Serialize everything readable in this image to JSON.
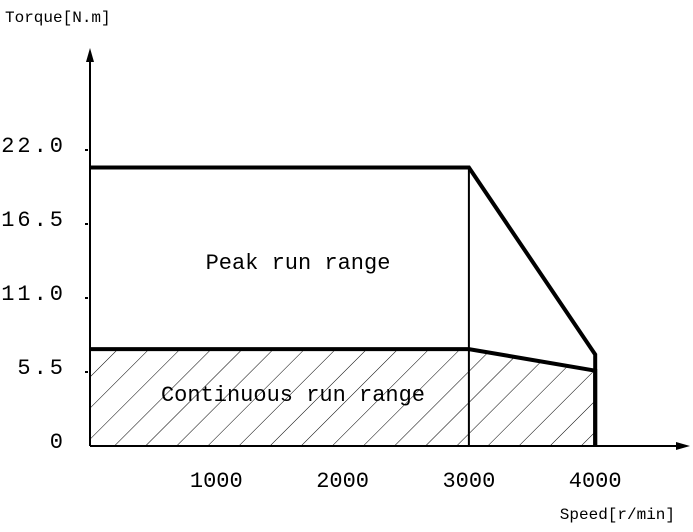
{
  "chart_data": {
    "type": "torque-speed",
    "y_label": "Torque[N.m]",
    "x_label": "Speed[r/min]",
    "xlim": [
      0,
      4700
    ],
    "ylim": [
      0,
      29
    ],
    "xticks": [
      1000,
      2000,
      3000,
      4000
    ],
    "yticks": [
      0,
      {
        "value": 5.5,
        "label": "5.5"
      },
      {
        "value": 11.0,
        "label": "11.0"
      },
      {
        "value": 16.5,
        "label": "16.5"
      },
      {
        "value": 22.0,
        "label": "22.0"
      }
    ],
    "series": [
      {
        "name": "Peak run range",
        "color": "#000000",
        "x": [
          0,
          3000,
          4000,
          4000
        ],
        "values": [
          20.7,
          20.7,
          6.8,
          0
        ]
      },
      {
        "name": "Continuous run range",
        "color": "#000000",
        "x": [
          0,
          3000,
          4000,
          4000
        ],
        "values": [
          7.2,
          7.2,
          5.6,
          0
        ],
        "hatched": true
      }
    ]
  }
}
